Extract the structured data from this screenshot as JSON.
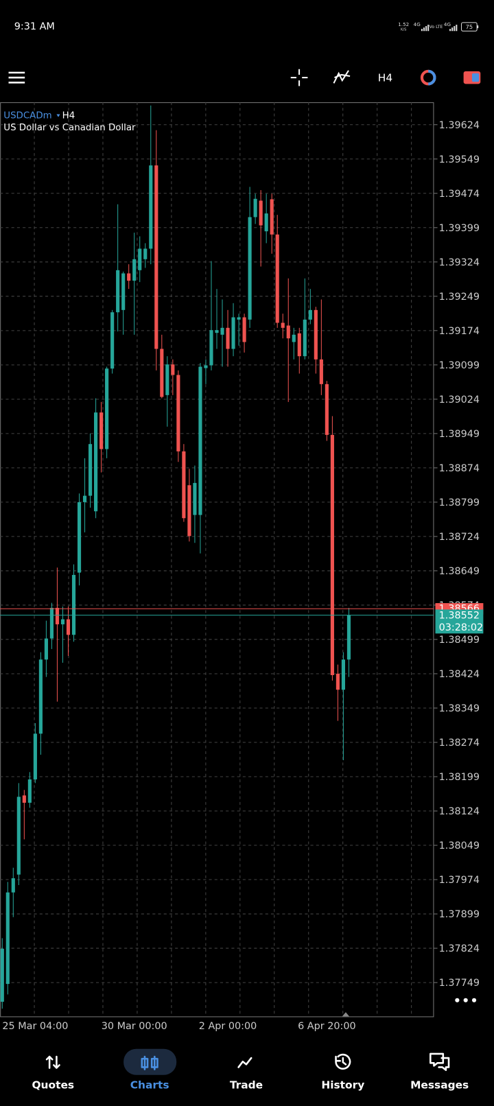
{
  "status_bar": {
    "time": "9:31 AM",
    "speed": "1.52",
    "speed_unit": "K/S",
    "net1": "4G",
    "volte": "Vo LTE",
    "net2": "4G",
    "battery": "75"
  },
  "toolbar": {
    "timeframe": "H4"
  },
  "chart_data": {
    "type": "candlestick",
    "symbol": "USDCADm",
    "timeframe": "H4",
    "subtitle": "US Dollar vs Canadian Dollar",
    "categories": [
      null,
      null,
      null,
      null,
      null,
      null,
      "25 Mar 04:00",
      null,
      null,
      null,
      null,
      null,
      null,
      null,
      null,
      null,
      null,
      null,
      null,
      null,
      null,
      null,
      null,
      null,
      "30 Mar 00:00",
      null,
      null,
      null,
      null,
      null,
      null,
      null,
      null,
      null,
      null,
      null,
      null,
      null,
      null,
      null,
      null,
      "2 Apr 00:00",
      null,
      null,
      null,
      null,
      null,
      null,
      null,
      null,
      null,
      null,
      null,
      null,
      null,
      null,
      null,
      null,
      null,
      "6 Apr 20:00",
      null,
      null,
      null,
      null
    ],
    "open": [
      1.37707,
      1.37746,
      1.37946,
      1.37985,
      1.38158,
      1.38142,
      1.38193,
      1.38293,
      1.38455,
      1.38501,
      1.38568,
      1.38532,
      1.38543,
      1.38509,
      1.38645,
      1.38799,
      1.38813,
      1.38779,
      1.38995,
      1.38915,
      1.39091,
      1.39214,
      1.39219,
      1.39299,
      1.39283,
      1.39306,
      1.3933,
      1.39353,
      1.39535,
      1.39134,
      1.39033,
      1.391,
      1.39077,
      1.3891,
      1.38836,
      1.38771,
      1.38771,
      1.39092,
      1.39098,
      1.39169,
      1.39165,
      1.3918,
      1.39134,
      1.39198,
      1.39203,
      1.39198,
      1.39422,
      1.39458,
      1.39391,
      1.39461,
      1.39384,
      1.39191,
      1.39185,
      1.39149,
      1.39168,
      1.39118,
      1.39198,
      1.39219,
      1.39111,
      1.39057,
      1.38946,
      1.38424,
      1.38389,
      1.38455
    ],
    "high": [
      1.37846,
      1.37969,
      1.38,
      1.38185,
      1.3817,
      1.38209,
      1.38316,
      1.38471,
      1.3854,
      1.38579,
      1.38656,
      1.38571,
      1.38571,
      1.38663,
      1.38818,
      1.38895,
      1.38949,
      1.39026,
      1.39018,
      1.39095,
      1.39219,
      1.3945,
      1.39303,
      1.39319,
      1.39388,
      1.3938,
      1.39365,
      1.39666,
      1.39612,
      1.39165,
      1.39118,
      1.39111,
      1.39087,
      1.38926,
      1.38872,
      1.38879,
      1.39103,
      1.39111,
      1.39326,
      1.39265,
      1.39242,
      1.39219,
      1.39234,
      1.39211,
      1.39211,
      1.39488,
      1.39473,
      1.39481,
      1.39473,
      1.39473,
      1.39427,
      1.39211,
      1.39288,
      1.3918,
      1.3918,
      1.39288,
      1.39265,
      1.39226,
      1.39242,
      1.39064,
      1.38987,
      1.38444,
      1.38471,
      1.38568
    ],
    "low": [
      1.37692,
      1.37723,
      1.37892,
      1.37962,
      1.38062,
      1.38131,
      1.38185,
      1.38247,
      1.38417,
      1.38478,
      1.38363,
      1.38448,
      1.38463,
      1.38494,
      1.38617,
      1.38733,
      1.38787,
      1.38764,
      1.38864,
      1.38895,
      1.3908,
      1.39172,
      1.39165,
      1.39265,
      1.39165,
      1.3928,
      1.39311,
      1.39319,
      1.39087,
      1.39026,
      1.38964,
      1.39033,
      1.38887,
      1.38756,
      1.38713,
      1.3871,
      1.38687,
      1.39057,
      1.39087,
      1.39134,
      1.39095,
      1.39095,
      1.39118,
      1.39141,
      1.39126,
      1.3918,
      1.39407,
      1.39314,
      1.39365,
      1.39342,
      1.3918,
      1.39157,
      1.39018,
      1.39111,
      1.3908,
      1.39111,
      1.39188,
      1.3908,
      1.39033,
      1.38933,
      1.38409,
      1.38321,
      1.38235,
      1.38417
    ],
    "close": [
      1.37823,
      1.37946,
      1.37977,
      1.38155,
      1.38142,
      1.38193,
      1.38293,
      1.38455,
      1.38501,
      1.38568,
      1.38532,
      1.38543,
      1.38509,
      1.3864,
      1.38799,
      1.38813,
      1.38926,
      1.38995,
      1.38915,
      1.39091,
      1.39214,
      1.39306,
      1.39299,
      1.39283,
      1.3933,
      1.39353,
      1.39353,
      1.39535,
      1.39134,
      1.39029,
      1.391,
      1.39077,
      1.3891,
      1.38764,
      1.38725,
      1.38841,
      1.39095,
      1.39098,
      1.39175,
      1.39175,
      1.3918,
      1.39134,
      1.39203,
      1.39203,
      1.39149,
      1.39422,
      1.39462,
      1.39404,
      1.3943,
      1.39384,
      1.39191,
      1.3918,
      1.39157,
      1.39165,
      1.39118,
      1.39198,
      1.39219,
      1.39111,
      1.39057,
      1.38946,
      1.38421,
      1.38389,
      1.38455,
      1.38552
    ],
    "up_color": "#26a69a",
    "down_color": "#ef5350",
    "ylim": [
      1.37675,
      1.39673
    ],
    "yticks": [
      1.39624,
      1.39549,
      1.39474,
      1.39399,
      1.39324,
      1.39249,
      1.39174,
      1.39099,
      1.39024,
      1.38949,
      1.38874,
      1.38799,
      1.38724,
      1.38649,
      1.38574,
      1.38499,
      1.38424,
      1.38349,
      1.38274,
      1.38199,
      1.38124,
      1.38049,
      1.37974,
      1.37899,
      1.37824,
      1.37749
    ],
    "grid": true,
    "ask": 1.38566,
    "ask_color": "#ef5350",
    "bid": 1.38552,
    "bid_color": "#26a69a",
    "countdown": "03:28:02"
  },
  "nav": {
    "active": 1,
    "items": [
      {
        "label": "Quotes"
      },
      {
        "label": "Charts"
      },
      {
        "label": "Trade"
      },
      {
        "label": "History"
      },
      {
        "label": "Messages"
      }
    ]
  }
}
